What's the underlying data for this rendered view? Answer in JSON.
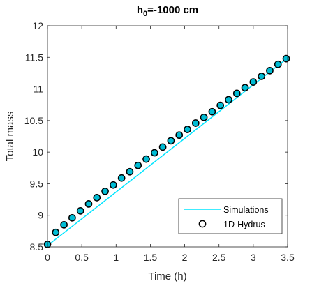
{
  "chart_data": {
    "type": "line",
    "title_main": "h",
    "title_sub": "0",
    "title_rest": "=-1000 cm",
    "xlabel": "Time (h)",
    "ylabel": "Total mass",
    "xlim": [
      0,
      3.5
    ],
    "ylim": [
      8.5,
      12
    ],
    "xticks": [
      0,
      0.5,
      1,
      1.5,
      2,
      2.5,
      3,
      3.5
    ],
    "yticks": [
      8.5,
      9,
      9.5,
      10,
      10.5,
      11,
      11.5,
      12
    ],
    "grid": false,
    "legend_position": "bottom-right",
    "series": [
      {
        "name": "Simulations",
        "style": "line",
        "color": "#00e5ff",
        "x": [
          0,
          3.5
        ],
        "y": [
          8.52,
          11.49
        ]
      },
      {
        "name": "1D-Hydrus",
        "style": "markers",
        "marker": "open-circle",
        "color": "#000000",
        "face_color": "#00bcd4",
        "x": [
          0,
          0.12,
          0.24,
          0.36,
          0.48,
          0.6,
          0.72,
          0.84,
          0.96,
          1.08,
          1.2,
          1.32,
          1.44,
          1.56,
          1.68,
          1.8,
          1.92,
          2.04,
          2.16,
          2.28,
          2.4,
          2.52,
          2.64,
          2.76,
          2.88,
          3.0,
          3.12,
          3.24,
          3.36,
          3.48
        ],
        "y": [
          8.54,
          8.73,
          8.85,
          8.96,
          9.07,
          9.18,
          9.28,
          9.38,
          9.48,
          9.59,
          9.69,
          9.79,
          9.89,
          9.99,
          10.08,
          10.18,
          10.27,
          10.36,
          10.46,
          10.55,
          10.64,
          10.74,
          10.83,
          10.93,
          11.02,
          11.11,
          11.2,
          11.29,
          11.39,
          11.48
        ]
      }
    ]
  }
}
